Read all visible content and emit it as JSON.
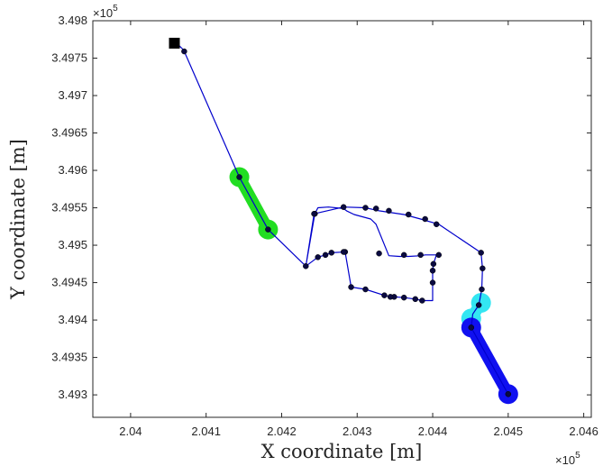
{
  "chart_data": {
    "type": "line",
    "title": "",
    "xlabel": "X coordinate [m]",
    "ylabel": "Y coordinate [m]",
    "x_multiplier": "×10",
    "x_multiplier_exp": "5",
    "y_multiplier": "×10",
    "y_multiplier_exp": "5",
    "xlim": [
      2.0395,
      2.0461
    ],
    "ylim": [
      3.4927,
      3.498
    ],
    "xticks": [
      2.04,
      2.041,
      2.042,
      2.043,
      2.044,
      2.045,
      2.046
    ],
    "xtick_labels": [
      "2.04",
      "2.041",
      "2.042",
      "2.043",
      "2.044",
      "2.045",
      "2.046"
    ],
    "yticks": [
      3.493,
      3.4935,
      3.494,
      3.4945,
      3.495,
      3.4955,
      3.496,
      3.4965,
      3.497,
      3.4975,
      3.498
    ],
    "ytick_labels": [
      "3.493",
      "3.4935",
      "3.494",
      "3.4945",
      "3.495",
      "3.4955",
      "3.496",
      "3.4965",
      "3.497",
      "3.4975",
      "3.498"
    ],
    "grid": false,
    "path": {
      "color": "#0000cc",
      "x": [
        2.04058,
        2.04063,
        2.04066,
        2.04069,
        2.04071,
        2.04144,
        2.04182,
        2.04232,
        2.04244,
        2.04248,
        2.04262,
        2.04282,
        2.04286,
        2.04296,
        2.04318,
        2.04325,
        2.04342,
        2.04356,
        2.04368,
        2.04385,
        2.0439,
        2.04405,
        2.04401,
        2.044,
        2.044,
        2.044,
        2.04386,
        2.04377,
        2.04362,
        2.04349,
        2.04344,
        2.04336,
        2.04311,
        2.04292,
        2.04284,
        2.04266,
        2.04258,
        2.04248,
        2.04232,
        2.04243,
        2.04282,
        2.04311,
        2.04329,
        2.04362,
        2.04384,
        2.04408,
        2.04464,
        2.04466,
        2.04465,
        2.04464,
        2.04461,
        2.04453,
        2.04451,
        2.045
      ],
      "y": [
        3.4977,
        3.49768,
        3.49765,
        3.49762,
        3.49759,
        3.49591,
        3.49521,
        3.49472,
        3.49542,
        3.4955,
        3.49551,
        3.49549,
        3.49546,
        3.49541,
        3.49535,
        3.49528,
        3.49486,
        3.49485,
        3.49485,
        3.49486,
        3.49487,
        3.49487,
        3.49475,
        3.49466,
        3.4945,
        3.49426,
        3.49426,
        3.49428,
        3.4943,
        3.49431,
        3.49431,
        3.49433,
        3.49441,
        3.49444,
        3.49491,
        3.4949,
        3.49487,
        3.49484,
        3.49472,
        3.49542,
        3.49551,
        3.4955,
        3.49546,
        3.49541,
        3.49535,
        3.49528,
        3.4949,
        3.49469,
        3.49441,
        3.49436,
        3.4942,
        3.49408,
        3.4939,
        3.49301
      ]
    },
    "markers_x": [
      2.04071,
      2.04144,
      2.04182,
      2.04232,
      2.04244,
      2.04282,
      2.04311,
      2.04325,
      2.04342,
      2.04368,
      2.0439,
      2.04405,
      2.04401,
      2.044,
      2.044,
      2.04386,
      2.04377,
      2.04362,
      2.04349,
      2.04344,
      2.04336,
      2.04311,
      2.04292,
      2.04284,
      2.04266,
      2.04258,
      2.04248,
      2.04243,
      2.04282,
      2.04329,
      2.04362,
      2.04384,
      2.04408,
      2.04464,
      2.04466,
      2.04465,
      2.04461,
      2.04451,
      2.045
    ],
    "markers_y": [
      3.49759,
      3.49591,
      3.49521,
      3.49472,
      3.49542,
      3.49551,
      3.4955,
      3.49549,
      3.49546,
      3.49541,
      3.49535,
      3.49528,
      3.49475,
      3.49466,
      3.4945,
      3.49426,
      3.49428,
      3.4943,
      3.49431,
      3.49431,
      3.49433,
      3.49441,
      3.49444,
      3.49491,
      3.4949,
      3.49487,
      3.49484,
      3.49542,
      3.49491,
      3.49489,
      3.49487,
      3.49487,
      3.49487,
      3.4949,
      3.49469,
      3.49441,
      3.4942,
      3.4939,
      3.49301
    ],
    "marker_color": "#0a0a40",
    "highlights": [
      {
        "color": "#22dd22",
        "x": [
          2.04144,
          2.04182
        ],
        "y": [
          3.49591,
          3.49521
        ]
      },
      {
        "color": "#33e6f2",
        "x": [
          2.04464,
          2.04451
        ],
        "y": [
          3.49423,
          3.49402
        ]
      },
      {
        "color": "#1010f0",
        "x": [
          2.04451,
          2.045
        ],
        "y": [
          3.4939,
          3.49301
        ]
      }
    ],
    "start_marker": {
      "x": 2.04058,
      "y": 3.4977,
      "color": "#000000"
    }
  }
}
